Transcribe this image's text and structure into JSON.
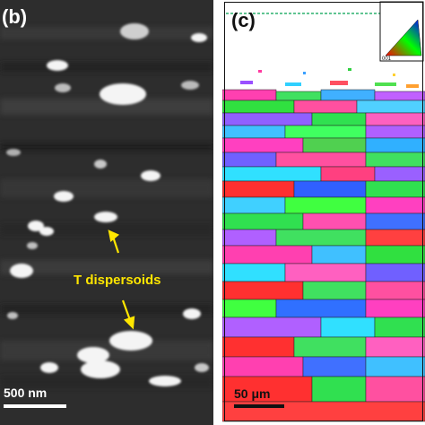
{
  "panels": {
    "b": {
      "label": "(b)",
      "scale_bar": "500 nm",
      "annotation": "T dispersoids"
    },
    "c": {
      "label": "(c)",
      "scale_bar": "50 μm",
      "inset_label": "001"
    }
  },
  "colors": {
    "annotation": "#ffe600",
    "reference_line": "#00a050"
  }
}
